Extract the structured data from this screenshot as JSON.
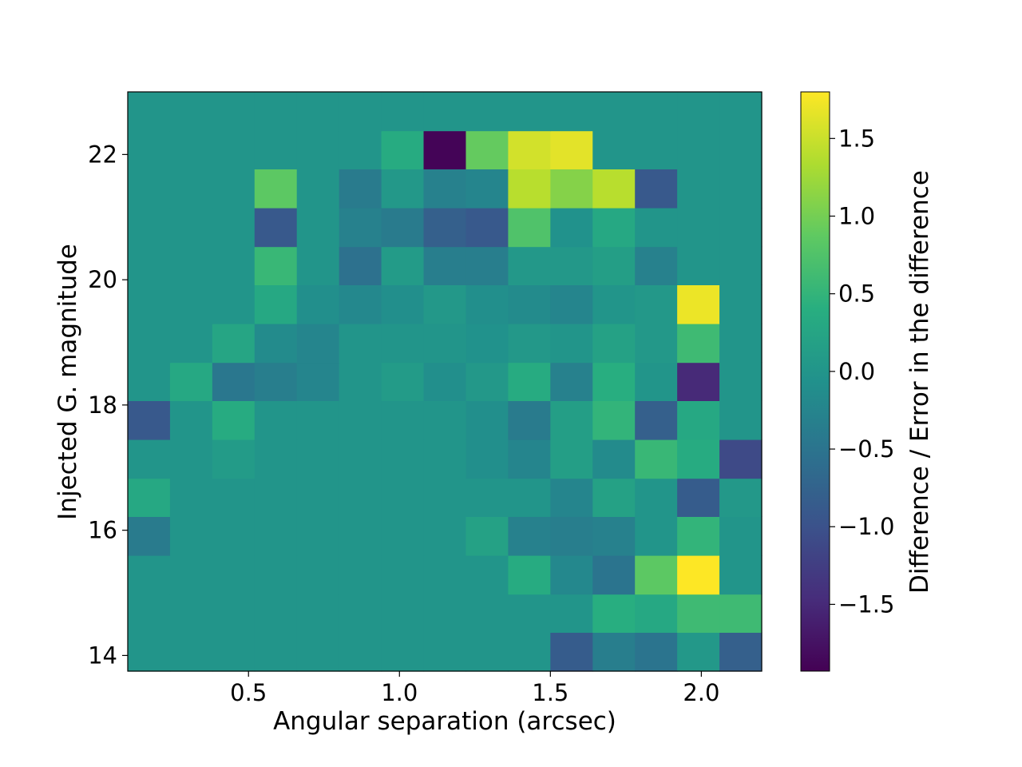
{
  "chart_data": {
    "type": "heatmap",
    "title": "",
    "xlabel": "Angular separation (arcsec)",
    "ylabel": "Injected G. magnitude",
    "colorbar_label": "Difference / Error in the difference",
    "colormap": "viridis",
    "xlim": [
      0.1,
      2.2
    ],
    "ylim": [
      13.75,
      23.0
    ],
    "clim": [
      -1.93,
      1.8
    ],
    "x_ticks": [
      0.5,
      1.0,
      1.5,
      2.0
    ],
    "x_tick_labels": [
      "0.5",
      "1.0",
      "1.5",
      "2.0"
    ],
    "y_ticks": [
      14,
      16,
      18,
      20,
      22
    ],
    "y_tick_labels": [
      "14",
      "16",
      "18",
      "20",
      "22"
    ],
    "colorbar_ticks": [
      -1.5,
      -1.0,
      -0.5,
      0.0,
      0.5,
      1.0,
      1.5
    ],
    "colorbar_tick_labels": [
      "−1.5",
      "−1.0",
      "−0.5",
      "0.0",
      "0.5",
      "1.0",
      "1.5"
    ],
    "x_edges": [
      0.1,
      0.24,
      0.38,
      0.52,
      0.66,
      0.8,
      0.94,
      1.08,
      1.22,
      1.36,
      1.5,
      1.64,
      1.78,
      1.92,
      2.06,
      2.2
    ],
    "y_edges": [
      13.75,
      14.37,
      14.98,
      15.6,
      16.22,
      16.83,
      17.45,
      18.07,
      18.68,
      19.3,
      19.92,
      20.53,
      21.15,
      21.77,
      22.38,
      23.0
    ],
    "values_row_order": "bottom_to_top",
    "values": [
      [
        0,
        0,
        0,
        0,
        0,
        0,
        0,
        0,
        0,
        0,
        -0.85,
        -0.35,
        -0.5,
        0.05,
        -0.8
      ],
      [
        0,
        0,
        0,
        0,
        0,
        0,
        0,
        0,
        0,
        0,
        0,
        0.4,
        0.3,
        0.6,
        0.6
      ],
      [
        0,
        0,
        0,
        0,
        0,
        0,
        0,
        0,
        0,
        0.35,
        -0.2,
        -0.5,
        0.85,
        1.8,
        0
      ],
      [
        -0.4,
        0,
        0,
        0,
        0,
        0,
        0,
        0,
        0.2,
        -0.3,
        -0.35,
        -0.3,
        0,
        0.5,
        0
      ],
      [
        0.3,
        0,
        0,
        0,
        0,
        0,
        0,
        0,
        0,
        0,
        -0.25,
        0.2,
        0,
        -0.85,
        0.05
      ],
      [
        0,
        0,
        0.1,
        0,
        0,
        0,
        0,
        0,
        -0.1,
        -0.25,
        0.15,
        -0.15,
        0.55,
        0.35,
        -1.1
      ],
      [
        -0.9,
        0,
        0.35,
        0,
        0,
        0,
        0,
        0,
        -0.1,
        -0.4,
        0.15,
        0.5,
        -0.8,
        0.3,
        0
      ],
      [
        0,
        0.3,
        -0.45,
        -0.35,
        -0.25,
        0,
        0.1,
        -0.1,
        0.05,
        0.35,
        -0.3,
        0.4,
        0,
        -1.5,
        0
      ],
      [
        0,
        0,
        0.25,
        -0.15,
        -0.25,
        0,
        0,
        0,
        -0.05,
        0.05,
        0,
        0.2,
        0.05,
        0.6,
        0
      ],
      [
        0,
        0,
        0,
        0.3,
        -0.1,
        -0.2,
        -0.1,
        0.05,
        -0.1,
        -0.15,
        -0.25,
        0,
        0.05,
        1.7,
        0
      ],
      [
        0,
        0,
        0,
        0.55,
        0,
        -0.55,
        0.1,
        -0.35,
        -0.35,
        0.05,
        0.05,
        0.15,
        -0.3,
        0,
        0
      ],
      [
        0,
        0,
        0,
        -0.9,
        0,
        -0.3,
        -0.4,
        -0.8,
        -0.9,
        0.75,
        -0.05,
        0.3,
        0,
        0,
        0
      ],
      [
        0,
        0,
        0,
        0.85,
        0,
        -0.4,
        0.05,
        -0.3,
        -0.25,
        1.4,
        1.1,
        1.4,
        -0.9,
        0,
        0
      ],
      [
        0,
        0,
        0,
        0,
        0,
        0,
        0.35,
        -1.9,
        0.9,
        1.55,
        1.65,
        0,
        0,
        0,
        0
      ],
      [
        0,
        0,
        0,
        0,
        0,
        0,
        0,
        0,
        0,
        0,
        0,
        0,
        0,
        0,
        0
      ]
    ]
  }
}
